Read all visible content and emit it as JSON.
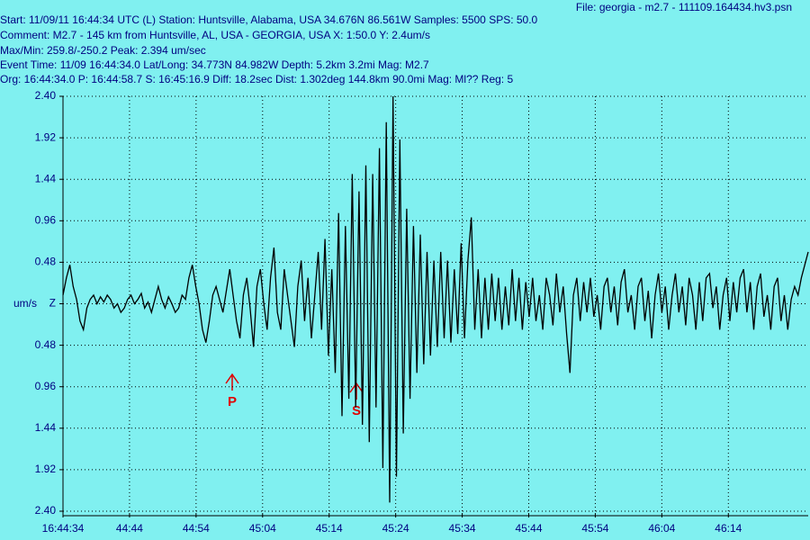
{
  "header": {
    "file": "File: georgia - m2.7 - 111109.164434.hv3.psn",
    "lines": [
      "Start: 11/09/11 16:44:34 UTC (L) Station: Huntsville, Alabama, USA 34.676N 86.561W Samples: 5500  SPS: 50.0",
      "Comment: M2.7 - 145 km from Huntsville, AL, USA - GEORGIA, USA   X: 1:50.0 Y: 2.4um/s",
      "Max/Min: 259.8/-250.2  Peak: 2.394 um/sec",
      "Event Time: 11/09 16:44:34.0 Lat/Long: 34.773N 84.982W Depth: 5.2km 3.2mi Mag: M2.7",
      "Org: 16:44:34.0 P: 16:44:58.7 S: 16:45:16.9 Diff: 18.2sec Dist: 1.302deg 144.8km 90.0mi  Mag: Ml?? Reg: 5"
    ]
  },
  "chart_data": {
    "type": "line",
    "y_label": "um/s",
    "annotations": [
      "P",
      "S"
    ],
    "color": "#000000",
    "grid": true,
    "xlim": [
      0,
      112
    ],
    "ylim": [
      -2.4,
      2.4
    ],
    "xticks": [
      {
        "value": 0,
        "label": "16:44:34"
      },
      {
        "value": 10,
        "label": "44:44"
      },
      {
        "value": 20,
        "label": "44:54"
      },
      {
        "value": 30,
        "label": "45:04"
      },
      {
        "value": 40,
        "label": "45:14"
      },
      {
        "value": 50,
        "label": "45:24"
      },
      {
        "value": 60,
        "label": "45:34"
      },
      {
        "value": 70,
        "label": "45:44"
      },
      {
        "value": 80,
        "label": "45:54"
      },
      {
        "value": 90,
        "label": "46:04"
      },
      {
        "value": 100,
        "label": "46:14"
      }
    ],
    "yticks": [
      {
        "value": 2.4,
        "label": "2.40"
      },
      {
        "value": 1.92,
        "label": "1.92"
      },
      {
        "value": 1.44,
        "label": "1.44"
      },
      {
        "value": 0.96,
        "label": "0.96"
      },
      {
        "value": 0.48,
        "label": "0.48"
      },
      {
        "value": 0,
        "label": "Z"
      },
      {
        "value": -0.48,
        "label": "0.48"
      },
      {
        "value": -0.96,
        "label": "0.96"
      },
      {
        "value": -1.44,
        "label": "1.44"
      },
      {
        "value": -1.92,
        "label": "1.92"
      },
      {
        "value": -2.4,
        "label": "2.40"
      }
    ],
    "values": [
      0.1,
      0.3,
      0.45,
      0.2,
      0.05,
      -0.2,
      -0.3,
      -0.05,
      0.05,
      0.1,
      0.0,
      0.08,
      0.02,
      0.1,
      0.05,
      -0.05,
      0.0,
      -0.1,
      -0.05,
      0.05,
      0.1,
      0.0,
      0.05,
      0.12,
      -0.05,
      0.02,
      -0.1,
      0.05,
      0.2,
      0.05,
      -0.05,
      0.08,
      0.0,
      -0.1,
      -0.05,
      0.1,
      0.05,
      0.3,
      0.45,
      0.2,
      0.0,
      -0.3,
      -0.45,
      -0.2,
      0.1,
      0.2,
      0.05,
      -0.1,
      0.15,
      0.4,
      0.1,
      -0.2,
      -0.4,
      0.1,
      0.3,
      -0.05,
      -0.5,
      0.2,
      0.4,
      0.0,
      -0.3,
      0.3,
      0.65,
      -0.1,
      -0.3,
      0.4,
      0.1,
      -0.2,
      -0.5,
      0.2,
      0.5,
      -0.2,
      0.3,
      -0.4,
      0.1,
      0.6,
      -0.3,
      0.75,
      -0.6,
      0.4,
      -0.8,
      1.05,
      -1.3,
      0.9,
      -1.1,
      1.5,
      -1.2,
      1.3,
      -1.4,
      1.6,
      -1.6,
      1.5,
      -1.2,
      1.8,
      -1.9,
      2.1,
      -2.3,
      2.4,
      -2.0,
      1.9,
      -1.5,
      1.1,
      -1.1,
      0.9,
      -0.8,
      0.8,
      -0.7,
      0.6,
      -0.6,
      0.5,
      -0.5,
      0.6,
      -0.4,
      0.5,
      -0.45,
      0.4,
      -0.35,
      0.7,
      -0.4,
      0.5,
      1.0,
      -0.3,
      0.4,
      -0.4,
      0.3,
      -0.3,
      0.35,
      -0.2,
      0.3,
      -0.3,
      0.2,
      -0.25,
      0.4,
      -0.2,
      0.3,
      -0.3,
      0.25,
      -0.15,
      0.3,
      -0.2,
      0.1,
      -0.3,
      0.3,
      0.1,
      -0.25,
      0.35,
      -0.1,
      0.2,
      -0.35,
      -0.8,
      0.1,
      0.3,
      -0.2,
      0.25,
      -0.1,
      0.3,
      -0.15,
      0.1,
      -0.3,
      0.2,
      0.3,
      -0.1,
      0.2,
      -0.25,
      0.25,
      0.4,
      -0.1,
      0.1,
      -0.3,
      0.2,
      0.3,
      -0.2,
      0.15,
      -0.4,
      0.1,
      0.35,
      -0.1,
      0.2,
      -0.3,
      0.1,
      0.35,
      -0.1,
      0.2,
      -0.25,
      0.3,
      0.1,
      -0.3,
      0.25,
      -0.2,
      0.3,
      0.35,
      -0.05,
      0.2,
      -0.3,
      0.1,
      0.3,
      -0.2,
      0.25,
      -0.1,
      0.3,
      0.4,
      -0.1,
      0.25,
      -0.3,
      0.2,
      0.35,
      -0.15,
      0.1,
      -0.3,
      0.2,
      0.3,
      -0.2,
      0.1,
      -0.3,
      0.05,
      0.2,
      0.1,
      0.3,
      0.45,
      0.6
    ]
  }
}
